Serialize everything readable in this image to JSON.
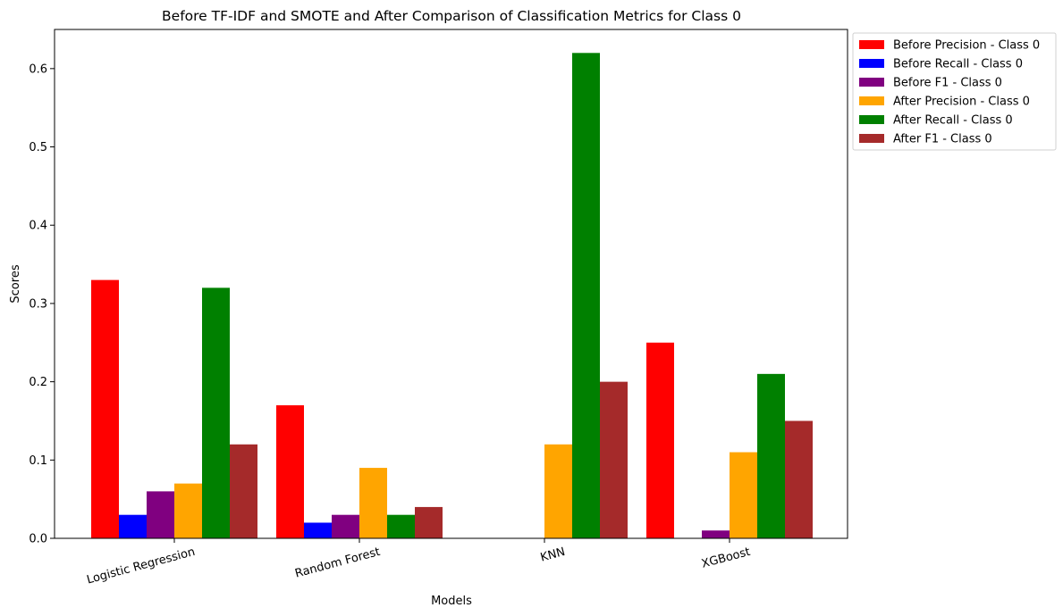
{
  "chart_data": {
    "type": "bar",
    "title": "Before TF-IDF and SMOTE and After Comparison of Classification Metrics for Class 0",
    "xlabel": "Models",
    "ylabel": "Scores",
    "categories": [
      "Logistic Regression",
      "Random Forest",
      "KNN",
      "XGBoost"
    ],
    "ylim": [
      0,
      0.65
    ],
    "yticks": [
      0.0,
      0.1,
      0.2,
      0.3,
      0.4,
      0.5,
      0.6
    ],
    "ytick_labels": [
      "0.0",
      "0.1",
      "0.2",
      "0.3",
      "0.4",
      "0.5",
      "0.6"
    ],
    "grid": false,
    "legend_position": "outside-top-right",
    "x_tick_rotation": -15,
    "series": [
      {
        "name": "Before Precision - Class 0",
        "color": "#ff0000",
        "values": [
          0.33,
          0.17,
          0.0,
          0.25
        ]
      },
      {
        "name": "Before Recall - Class 0",
        "color": "#0000ff",
        "values": [
          0.03,
          0.02,
          0.0,
          0.0
        ]
      },
      {
        "name": "Before F1 - Class 0",
        "color": "#800080",
        "values": [
          0.06,
          0.03,
          0.0,
          0.01
        ]
      },
      {
        "name": "After Precision - Class 0",
        "color": "#ffa500",
        "values": [
          0.07,
          0.09,
          0.12,
          0.11
        ]
      },
      {
        "name": "After Recall - Class 0",
        "color": "#008000",
        "values": [
          0.32,
          0.03,
          0.62,
          0.21
        ]
      },
      {
        "name": "After F1 - Class 0",
        "color": "#a52a2a",
        "values": [
          0.12,
          0.04,
          0.2,
          0.15
        ]
      }
    ]
  }
}
